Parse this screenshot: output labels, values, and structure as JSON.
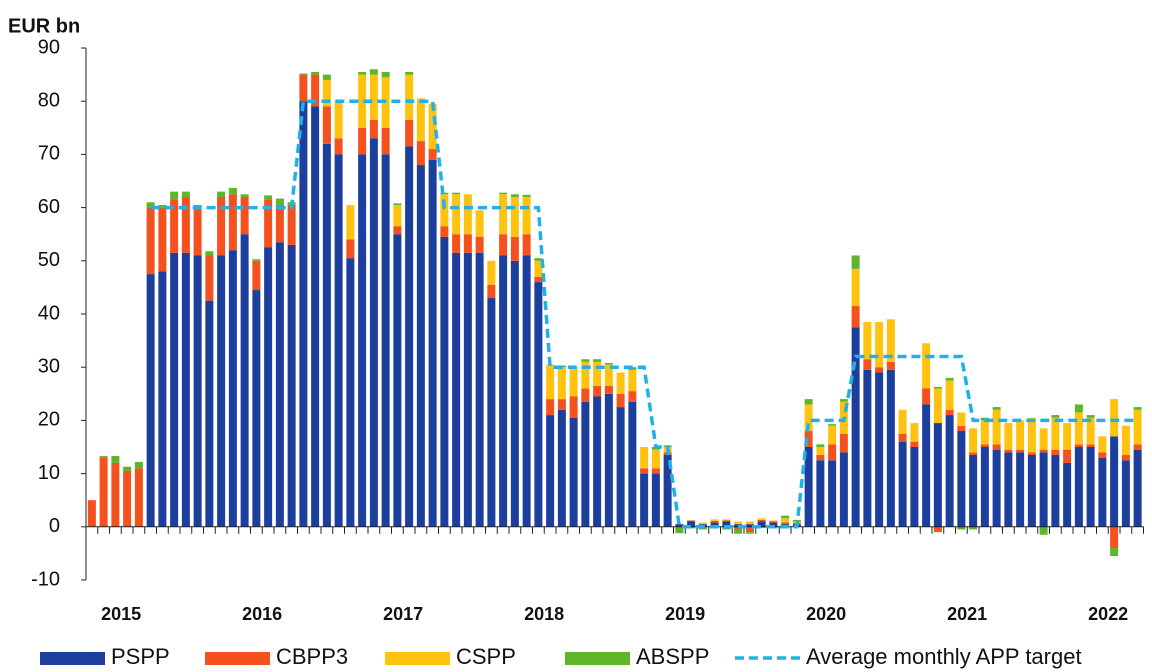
{
  "chart_data": {
    "type": "bar",
    "stacked": true,
    "y_label": "EUR bn",
    "categories": [
      null,
      null,
      null,
      "2015",
      null,
      null,
      null,
      null,
      null,
      null,
      null,
      null,
      null,
      null,
      null,
      "2016",
      null,
      null,
      null,
      null,
      null,
      null,
      null,
      null,
      null,
      null,
      null,
      "2017",
      null,
      null,
      null,
      null,
      null,
      null,
      null,
      null,
      null,
      null,
      null,
      "2018",
      null,
      null,
      null,
      null,
      null,
      null,
      null,
      null,
      null,
      null,
      null,
      "2019",
      null,
      null,
      null,
      null,
      null,
      null,
      null,
      null,
      null,
      null,
      null,
      "2020",
      null,
      null,
      null,
      null,
      null,
      null,
      null,
      null,
      null,
      null,
      null,
      "2021",
      null,
      null,
      null,
      null,
      null,
      null,
      null,
      null,
      null,
      null,
      null,
      "2022",
      null,
      null
    ],
    "ylim": [
      -10,
      90
    ],
    "yticks": [
      -10,
      0,
      10,
      20,
      30,
      40,
      50,
      60,
      70,
      80,
      90
    ],
    "grid": false,
    "legend": "bottom",
    "series": [
      {
        "name": "PSPP",
        "color": "#1c3f9e",
        "values": [
          0,
          0,
          0,
          0,
          0,
          47.5,
          48,
          51.5,
          51.5,
          51,
          42.5,
          51,
          52,
          55,
          44.5,
          52.5,
          53.5,
          53,
          80,
          79,
          72,
          70,
          50.5,
          70,
          73,
          70,
          55,
          71.5,
          68,
          69,
          54.5,
          51.5,
          51.5,
          51.5,
          43,
          51,
          50,
          51,
          46,
          21,
          22,
          20.5,
          23.5,
          24.5,
          25,
          22.5,
          23.5,
          10,
          10,
          13.5,
          0.5,
          1,
          0.5,
          0.8,
          1,
          0.5,
          0.5,
          1,
          0.8,
          0.5,
          0.5,
          15,
          12.5,
          12.5,
          14,
          37.5,
          29.5,
          29,
          29.5,
          16,
          15,
          23,
          19.5,
          21,
          18,
          13.5,
          15,
          14.5,
          14,
          14,
          13.5,
          14,
          13.5,
          12,
          15,
          15,
          13,
          17,
          12.5,
          14.5
        ]
      },
      {
        "name": "CBPP3",
        "color": "#f4511e",
        "values": [
          5,
          13,
          12,
          10.5,
          11,
          12.5,
          12,
          10,
          10.5,
          9,
          8.5,
          11,
          10.5,
          7,
          5.5,
          9,
          7,
          7.5,
          5,
          6,
          7,
          3,
          3.5,
          5,
          3.5,
          5,
          1.5,
          5,
          4.5,
          2,
          2,
          3.5,
          3.5,
          3,
          2.5,
          4,
          4.5,
          4,
          1,
          3,
          2,
          4,
          2.5,
          2,
          1.5,
          2.5,
          2,
          1,
          1,
          0.5,
          0,
          0.2,
          0,
          0.3,
          0.2,
          -0.5,
          -1,
          0.3,
          0.2,
          0.3,
          0.2,
          3,
          1,
          3,
          3.5,
          4,
          2,
          1,
          1.5,
          1.5,
          1,
          3,
          -1,
          1,
          1,
          0.5,
          0.5,
          1,
          0.5,
          0.5,
          0.5,
          0.5,
          1,
          2.5,
          0.5,
          0.5,
          1,
          -4,
          1,
          1
        ]
      },
      {
        "name": "CSPP",
        "color": "#ffc20e",
        "values": [
          0,
          0,
          0,
          0,
          0,
          0,
          0,
          0,
          0,
          0,
          0,
          0,
          0,
          0,
          0,
          0,
          0,
          0,
          0,
          0,
          5,
          7,
          6.5,
          10,
          8.5,
          9.5,
          4,
          8.5,
          8,
          8.5,
          6,
          7.5,
          7.5,
          5,
          4.5,
          7.5,
          7.5,
          7,
          3,
          6.5,
          6,
          5.5,
          5,
          4.5,
          4,
          4,
          4,
          4,
          3.5,
          1,
          0,
          0,
          0.3,
          0.3,
          0.2,
          0.5,
          0.5,
          0.3,
          0.2,
          0.8,
          0.3,
          5,
          1.5,
          3.5,
          6,
          7,
          7,
          8.5,
          8,
          4.5,
          3.5,
          8.5,
          6.5,
          5.5,
          2.5,
          4.5,
          4.5,
          6.5,
          5,
          5.5,
          6.5,
          4,
          6,
          5,
          6,
          5,
          3,
          7,
          5.5,
          6.5
        ]
      },
      {
        "name": "ABSPP",
        "color": "#5db52a",
        "values": [
          0,
          0.3,
          1.3,
          0.8,
          1.2,
          1,
          0.5,
          1.5,
          1,
          0.5,
          0.8,
          1,
          1.2,
          0.5,
          0.3,
          0.8,
          1.2,
          0.5,
          0.2,
          0.5,
          1,
          0,
          0,
          0.5,
          1,
          1,
          0.3,
          0.5,
          0,
          0,
          0.3,
          0.3,
          0,
          0,
          0,
          0.3,
          0.5,
          0.4,
          0.5,
          0,
          0.3,
          0,
          0.5,
          0.5,
          0.3,
          0,
          0.5,
          0,
          0.5,
          0.3,
          -1.2,
          -0.3,
          -0.5,
          -0.3,
          -0.5,
          -0.8,
          -0.3,
          -0.2,
          -0.3,
          0.5,
          0.3,
          1,
          0.5,
          0.3,
          0.5,
          2.5,
          0,
          0,
          0,
          0,
          0,
          0,
          0.3,
          0.5,
          -0.5,
          -0.5,
          0.5,
          0.5,
          0,
          0,
          0,
          -1.5,
          0.5,
          0,
          1.5,
          0.5,
          0,
          -1.5,
          0,
          0.5
        ]
      },
      {
        "name": "Average monthly APP target",
        "color": "#21b0ea",
        "type": "line",
        "dashed": true,
        "values": [
          null,
          null,
          null,
          null,
          null,
          60,
          60,
          60,
          60,
          60,
          60,
          60,
          60,
          60,
          60,
          60,
          60,
          60,
          80,
          80,
          80,
          80,
          80,
          80,
          80,
          80,
          80,
          80,
          80,
          80,
          60,
          60,
          60,
          60,
          60,
          60,
          60,
          60,
          60,
          30,
          30,
          30,
          30,
          30,
          30,
          30,
          30,
          30,
          15,
          15,
          0,
          0,
          0,
          0,
          0,
          0,
          0,
          0,
          0,
          0,
          0,
          20,
          20,
          20,
          20,
          32,
          32,
          32,
          32,
          32,
          32,
          32,
          32,
          32,
          32,
          20,
          20,
          20,
          20,
          20,
          20,
          20,
          20,
          20,
          20,
          20,
          20,
          20,
          20,
          20
        ]
      }
    ]
  }
}
